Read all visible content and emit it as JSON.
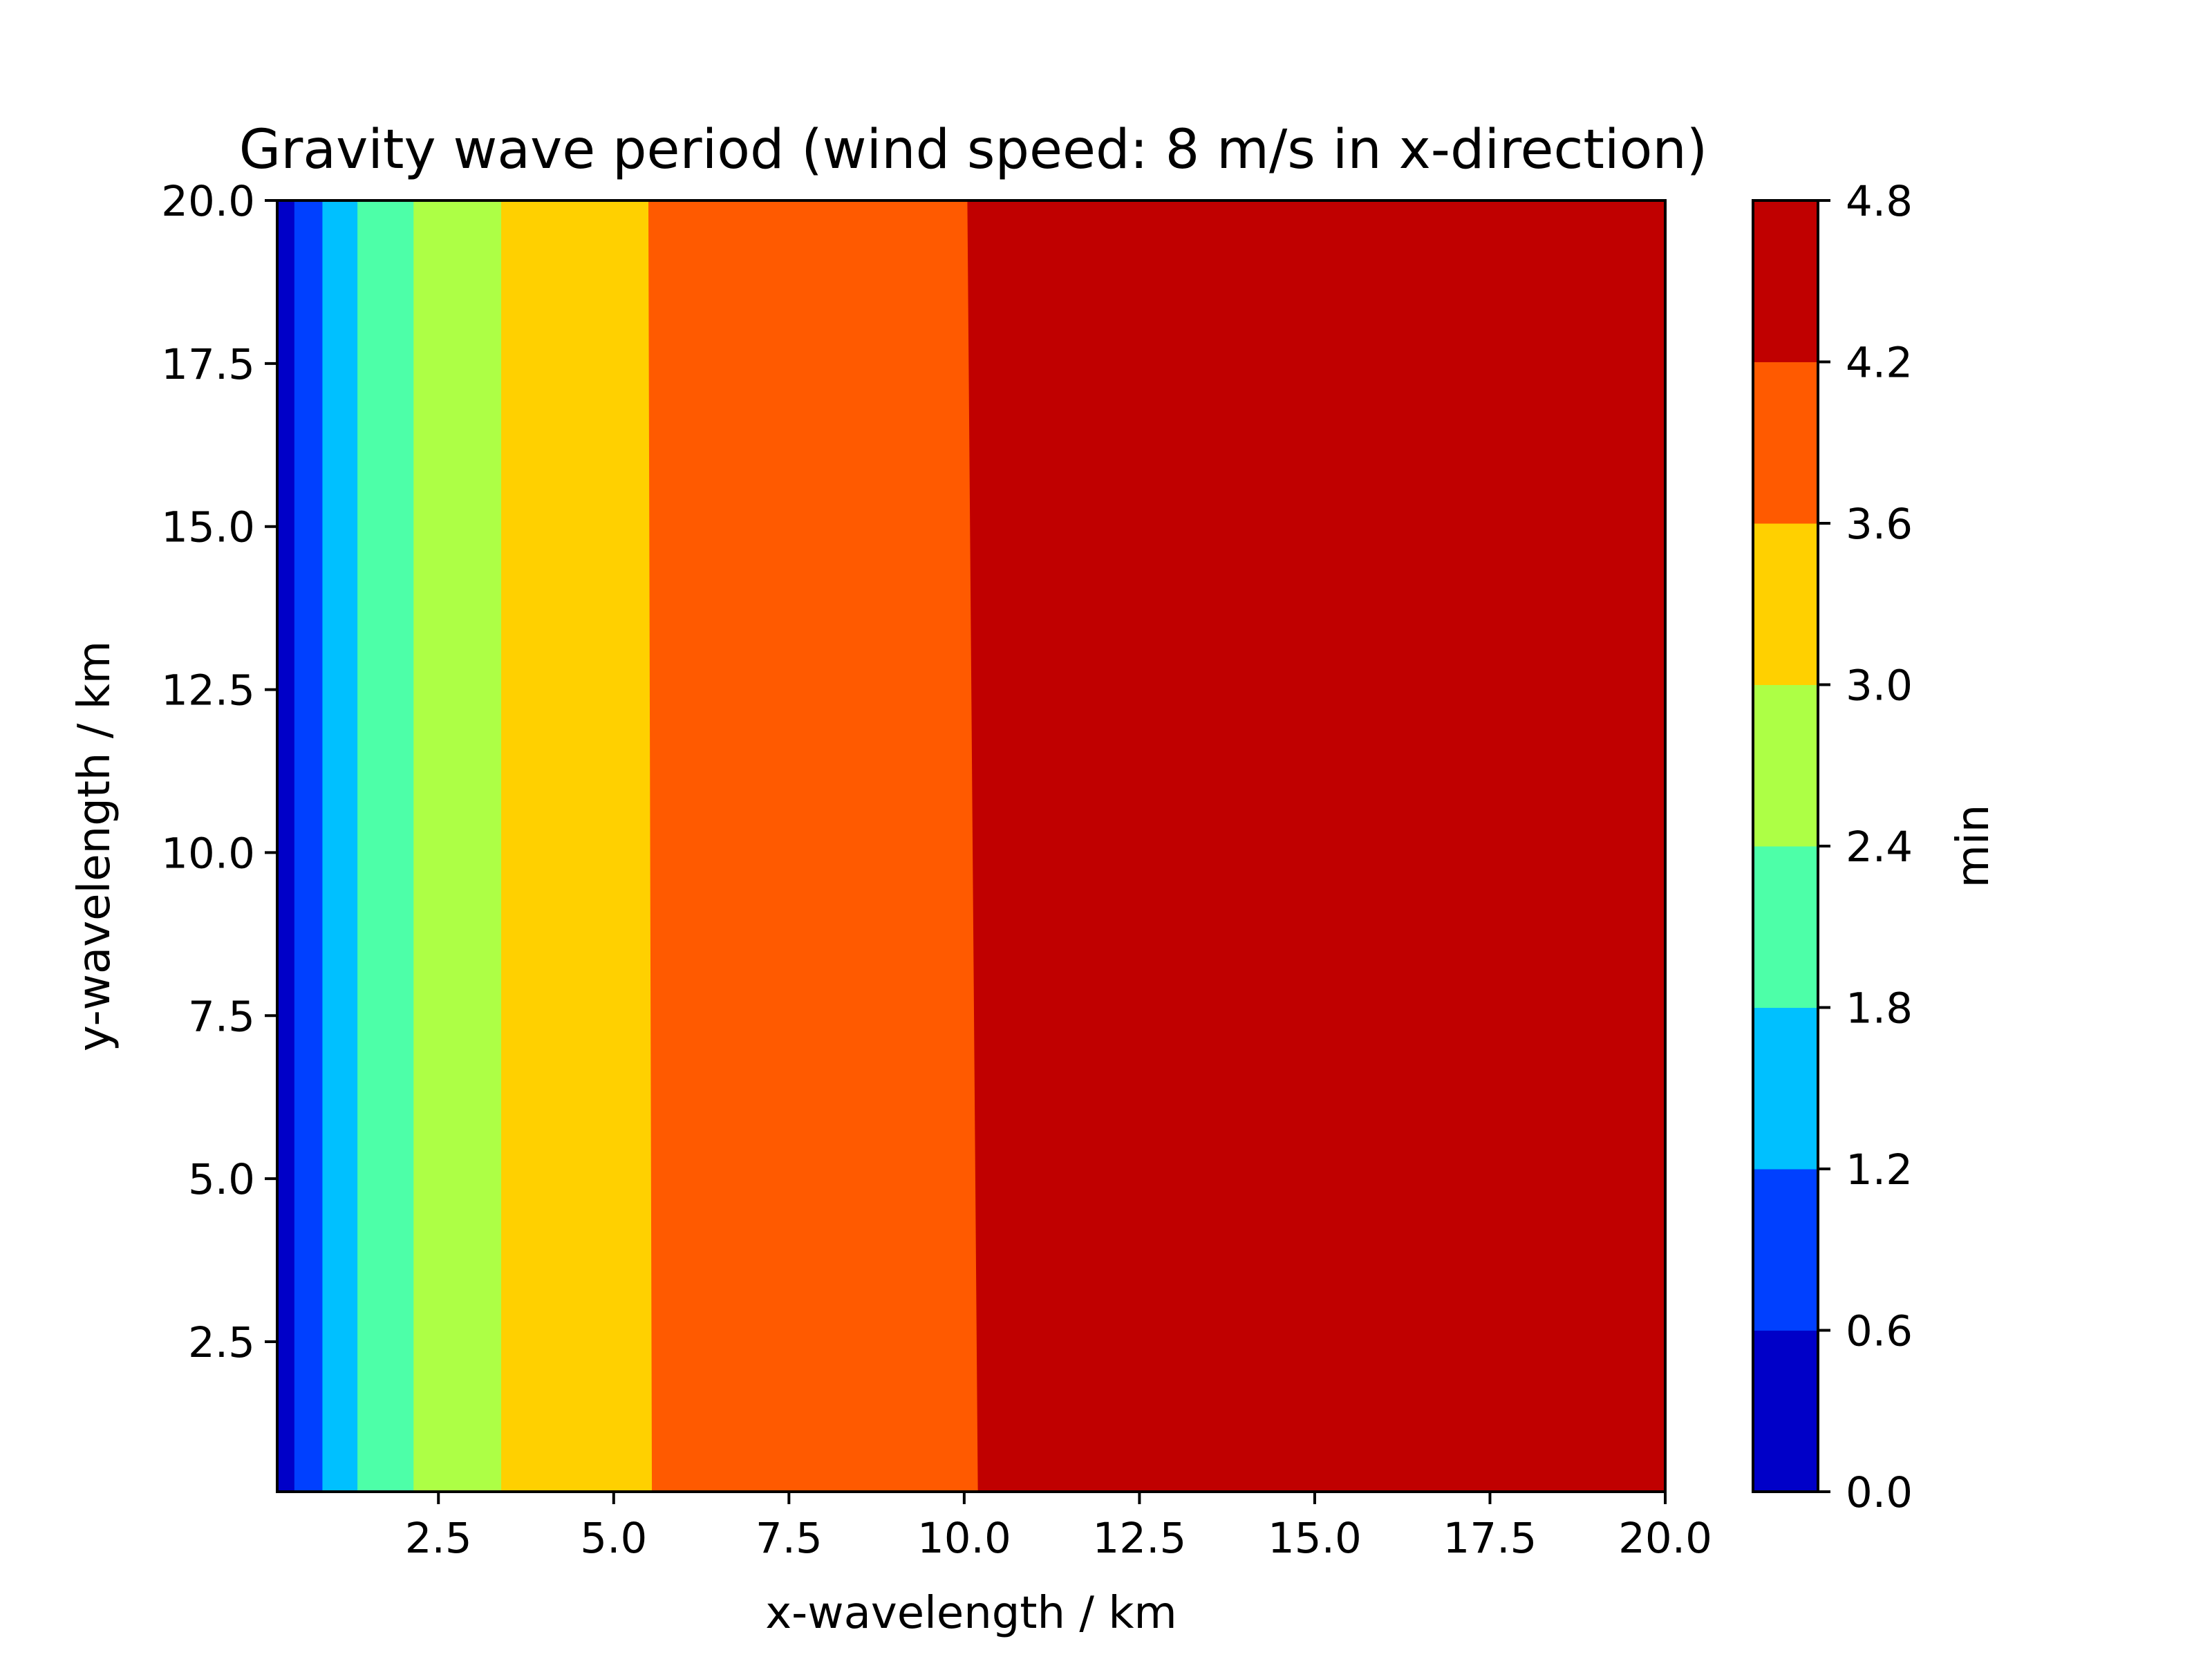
{
  "chart_data": {
    "type": "heatmap",
    "subtype": "filled-contour",
    "title": "Gravity wave period (wind speed: 8 m/s in x-direction)",
    "xlabel": "x-wavelength / km",
    "ylabel": "y-wavelength / km",
    "xlim": [
      0.2,
      20.0
    ],
    "ylim": [
      0.2,
      20.0
    ],
    "xticks": [
      "2.5",
      "5.0",
      "7.5",
      "10.0",
      "12.5",
      "15.0",
      "17.5",
      "20.0"
    ],
    "yticks": [
      "2.5",
      "5.0",
      "7.5",
      "10.0",
      "12.5",
      "15.0",
      "17.5",
      "20.0"
    ],
    "colorbar": {
      "label": "min",
      "levels": [
        0.0,
        0.6,
        1.2,
        1.8,
        2.4,
        3.0,
        3.6,
        4.2,
        4.8
      ],
      "tick_labels": [
        "0.0",
        "0.6",
        "1.2",
        "1.8",
        "2.4",
        "3.0",
        "3.6",
        "4.2",
        "4.8"
      ],
      "colors": [
        "#0000c8",
        "#0040ff",
        "#00c0ff",
        "#4dffa8",
        "#adff45",
        "#ffd000",
        "#ff5a00",
        "#c00000"
      ]
    },
    "contour_bands": [
      {
        "range": [
          0.0,
          0.6
        ],
        "color": "#0000c8",
        "x_upper_at_y_min": 0.45,
        "x_upper_at_y_max": 0.45
      },
      {
        "range": [
          0.6,
          1.2
        ],
        "color": "#0040ff",
        "x_upper_at_y_min": 0.85,
        "x_upper_at_y_max": 0.85
      },
      {
        "range": [
          1.2,
          1.8
        ],
        "color": "#00c0ff",
        "x_upper_at_y_min": 1.35,
        "x_upper_at_y_max": 1.35
      },
      {
        "range": [
          1.8,
          2.4
        ],
        "color": "#4dffa8",
        "x_upper_at_y_min": 2.15,
        "x_upper_at_y_max": 2.15
      },
      {
        "range": [
          2.4,
          3.0
        ],
        "color": "#adff45",
        "x_upper_at_y_min": 3.4,
        "x_upper_at_y_max": 3.4
      },
      {
        "range": [
          3.0,
          3.6
        ],
        "color": "#ffd000",
        "x_upper_at_y_min": 5.55,
        "x_upper_at_y_max": 5.5
      },
      {
        "range": [
          3.6,
          4.2
        ],
        "color": "#ff5a00",
        "x_upper_at_y_min": 10.2,
        "x_upper_at_y_max": 10.05
      },
      {
        "range": [
          4.2,
          4.8
        ],
        "color": "#c00000",
        "x_upper_at_y_min": 20.0,
        "x_upper_at_y_max": 20.0
      }
    ]
  }
}
